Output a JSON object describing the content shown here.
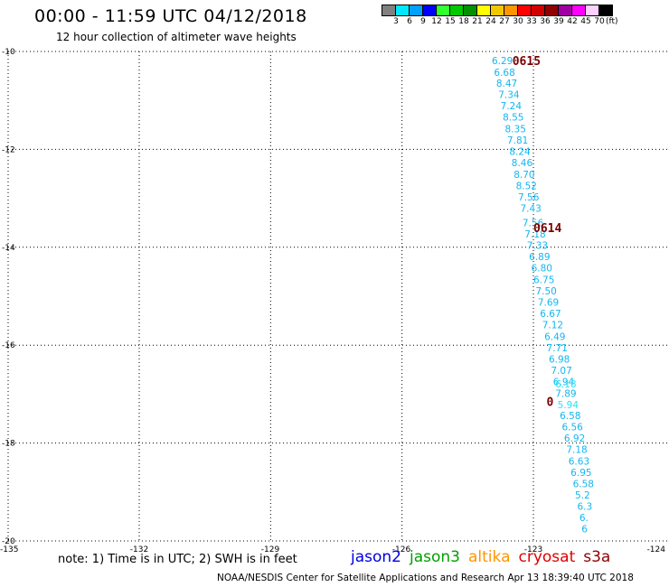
{
  "title": "00:00 - 11:59 UTC 04/12/2018",
  "subtitle": "12 hour collection of altimeter wave heights",
  "legend": {
    "unit": "(ft)",
    "swatches": [
      {
        "color": "#808080",
        "label": "3"
      },
      {
        "color": "#00e8ff",
        "label": "6"
      },
      {
        "color": "#00a0ff",
        "label": "9"
      },
      {
        "color": "#0000ff",
        "label": "12"
      },
      {
        "color": "#30ff30",
        "label": "15"
      },
      {
        "color": "#00c800",
        "label": "18"
      },
      {
        "color": "#009000",
        "label": "21"
      },
      {
        "color": "#ffff00",
        "label": "24"
      },
      {
        "color": "#f0c800",
        "label": "27"
      },
      {
        "color": "#ff9600",
        "label": "30"
      },
      {
        "color": "#ff0000",
        "label": "33"
      },
      {
        "color": "#d00000",
        "label": "36"
      },
      {
        "color": "#900000",
        "label": "39"
      },
      {
        "color": "#a000a0",
        "label": "42"
      },
      {
        "color": "#ff00ff",
        "label": "45"
      },
      {
        "color": "#ffd0ff",
        "label": "70"
      },
      {
        "color": "#000000",
        "label": ""
      }
    ]
  },
  "map": {
    "lon_range": [
      -135,
      -124
    ],
    "lat_range": [
      -20,
      -10
    ],
    "lon_ticks": [
      "-135",
      "-132",
      "-129",
      "-126",
      "-123",
      "-124"
    ],
    "lat_ticks": [
      "-10",
      "-12",
      "-14",
      "-16",
      "-18",
      "-20"
    ],
    "grid_lons": [
      -132,
      -129,
      -126,
      -123
    ],
    "grid_lats": [
      -12,
      -14,
      -16,
      -18
    ],
    "pass_times": [
      {
        "text": "0615",
        "lon": -123.48,
        "lat": -10.18
      },
      {
        "text": "0614",
        "lon": -123.0,
        "lat": -13.6
      },
      {
        "text": "0",
        "lon": -122.7,
        "lat": -17.15
      }
    ],
    "observations": [
      {
        "lon": -123.95,
        "lat": -10.18,
        "swh": "6.29"
      },
      {
        "lon": -123.9,
        "lat": -10.42,
        "swh": "6.68"
      },
      {
        "lon": -123.85,
        "lat": -10.65,
        "swh": "8.47"
      },
      {
        "lon": -123.8,
        "lat": -10.88,
        "swh": "7.34"
      },
      {
        "lon": -123.75,
        "lat": -11.11,
        "swh": "7.24"
      },
      {
        "lon": -123.7,
        "lat": -11.34,
        "swh": "8.55"
      },
      {
        "lon": -123.65,
        "lat": -11.58,
        "swh": "8.35"
      },
      {
        "lon": -123.6,
        "lat": -11.81,
        "swh": "7.81"
      },
      {
        "lon": -123.55,
        "lat": -12.04,
        "swh": "8.24"
      },
      {
        "lon": -123.5,
        "lat": -12.27,
        "swh": "8.46"
      },
      {
        "lon": -123.45,
        "lat": -12.51,
        "swh": "8.70"
      },
      {
        "lon": -123.4,
        "lat": -12.74,
        "swh": "8.52"
      },
      {
        "lon": -123.35,
        "lat": -12.97,
        "swh": "7.56"
      },
      {
        "lon": -123.3,
        "lat": -13.2,
        "swh": "7.43"
      },
      {
        "lon": -123.25,
        "lat": -13.5,
        "swh": "7.56"
      },
      {
        "lon": -123.2,
        "lat": -13.73,
        "swh": "7.18"
      },
      {
        "lon": -123.15,
        "lat": -13.96,
        "swh": "7.33"
      },
      {
        "lon": -123.1,
        "lat": -14.19,
        "swh": "6.89"
      },
      {
        "lon": -123.05,
        "lat": -14.42,
        "swh": "6.80"
      },
      {
        "lon": -123.0,
        "lat": -14.66,
        "swh": "6.75"
      },
      {
        "lon": -122.95,
        "lat": -14.89,
        "swh": "7.50"
      },
      {
        "lon": -122.9,
        "lat": -15.12,
        "swh": "7.69"
      },
      {
        "lon": -122.85,
        "lat": -15.35,
        "swh": "6.67"
      },
      {
        "lon": -122.8,
        "lat": -15.58,
        "swh": "7.12"
      },
      {
        "lon": -122.75,
        "lat": -15.82,
        "swh": "6.49"
      },
      {
        "lon": -122.7,
        "lat": -16.05,
        "swh": "7.71"
      },
      {
        "lon": -122.65,
        "lat": -16.28,
        "swh": "6.98"
      },
      {
        "lon": -122.6,
        "lat": -16.51,
        "swh": "7.07"
      },
      {
        "lon": -122.55,
        "lat": -16.74,
        "swh": "6.94"
      },
      {
        "lon": -122.5,
        "lat": -16.79,
        "swh": "6.18",
        "light": true
      },
      {
        "lon": -122.5,
        "lat": -16.98,
        "swh": "7.89"
      },
      {
        "lon": -122.45,
        "lat": -17.21,
        "swh": "5.94",
        "light": true
      },
      {
        "lon": -122.4,
        "lat": -17.44,
        "swh": "6.58"
      },
      {
        "lon": -122.35,
        "lat": -17.67,
        "swh": "6.56"
      },
      {
        "lon": -122.3,
        "lat": -17.9,
        "swh": "6.92"
      },
      {
        "lon": -122.25,
        "lat": -18.13,
        "swh": "7.18"
      },
      {
        "lon": -122.2,
        "lat": -18.37,
        "swh": "6.63"
      },
      {
        "lon": -122.15,
        "lat": -18.6,
        "swh": "6.95"
      },
      {
        "lon": -122.1,
        "lat": -18.83,
        "swh": "6.58"
      },
      {
        "lon": -122.05,
        "lat": -19.06,
        "swh": "5.2"
      },
      {
        "lon": -122.0,
        "lat": -19.29,
        "swh": "6.3"
      },
      {
        "lon": -121.95,
        "lat": -19.52,
        "swh": "6."
      },
      {
        "lon": -121.9,
        "lat": -19.75,
        "swh": "6"
      }
    ]
  },
  "note": "note: 1) Time is in UTC; 2) SWH is in feet",
  "satellites": [
    {
      "name": "jason2",
      "color": "#0000e0"
    },
    {
      "name": "jason3",
      "color": "#00a000"
    },
    {
      "name": "altika",
      "color": "#ff9600"
    },
    {
      "name": "cryosat",
      "color": "#e00000"
    },
    {
      "name": "s3a",
      "color": "#900000"
    }
  ],
  "credit": "NOAA/NESDIS Center for Satellite Applications and Research    Apr 13 18:39:40 UTC 2018"
}
